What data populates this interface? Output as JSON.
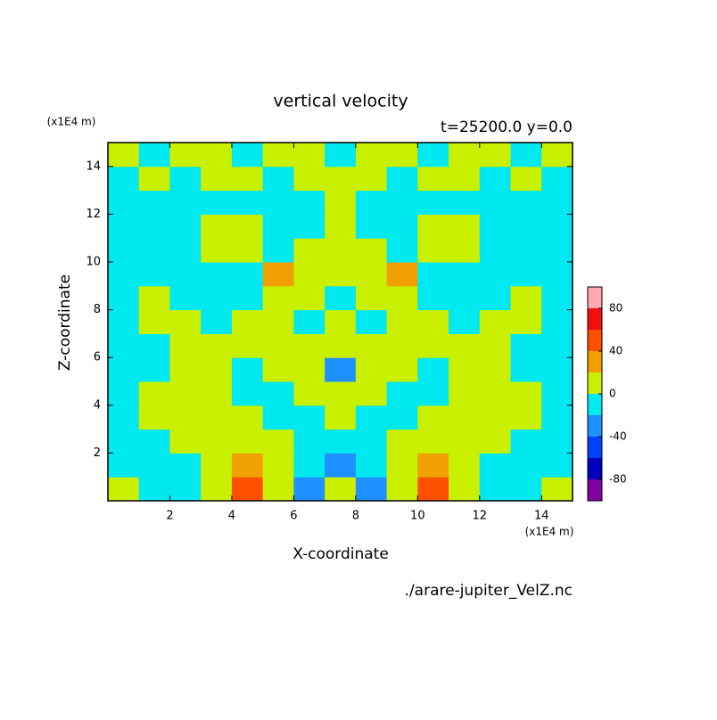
{
  "chart_data": {
    "type": "contour",
    "title": "vertical velocity",
    "subtitle": "t=25200.0 y=0.0",
    "x_label": "X-coordinate",
    "y_label": "Z-coordinate",
    "x_unit": "(x1E4 m)",
    "y_unit": "(x1E4 m)",
    "source": "./arare-jupiter_VelZ.nc",
    "xlim": [
      0,
      15
    ],
    "ylim": [
      0,
      15
    ],
    "xticks": [
      2,
      4,
      6,
      8,
      10,
      12,
      14
    ],
    "yticks": [
      2,
      4,
      6,
      8,
      10,
      12,
      14
    ],
    "x": [
      0.5,
      1.5,
      2.5,
      3.5,
      4.5,
      5.5,
      6.5,
      7.5,
      8.5,
      9.5,
      10.5,
      11.5,
      12.5,
      13.5,
      14.5
    ],
    "y": [
      0.5,
      1.5,
      2.5,
      3.5,
      4.5,
      5.5,
      6.5,
      7.5,
      8.5,
      9.5,
      10.5,
      11.5,
      12.5,
      13.5,
      14.5
    ],
    "z": [
      [
        10,
        -10,
        -10,
        10,
        50,
        10,
        -30,
        10,
        -30,
        10,
        50,
        10,
        -10,
        -10,
        10
      ],
      [
        -10,
        -10,
        -10,
        10,
        30,
        10,
        -10,
        -30,
        -10,
        10,
        30,
        10,
        -10,
        -10,
        -10
      ],
      [
        -10,
        -10,
        10,
        10,
        10,
        10,
        -10,
        -10,
        -10,
        10,
        10,
        10,
        10,
        -10,
        -10
      ],
      [
        -10,
        10,
        10,
        10,
        10,
        -10,
        -10,
        10,
        -10,
        -10,
        10,
        10,
        10,
        10,
        -10
      ],
      [
        -10,
        10,
        10,
        10,
        -10,
        -10,
        10,
        10,
        10,
        -10,
        -10,
        10,
        10,
        10,
        -10
      ],
      [
        -10,
        -10,
        10,
        10,
        -10,
        10,
        10,
        -30,
        10,
        10,
        -10,
        10,
        10,
        -10,
        -10
      ],
      [
        -10,
        -10,
        10,
        10,
        10,
        10,
        10,
        10,
        10,
        10,
        10,
        10,
        10,
        -10,
        -10
      ],
      [
        -10,
        10,
        10,
        -10,
        10,
        10,
        -10,
        10,
        -10,
        10,
        10,
        -10,
        10,
        10,
        -10
      ],
      [
        -10,
        10,
        -10,
        -10,
        -10,
        10,
        10,
        -10,
        10,
        10,
        -10,
        -10,
        -10,
        10,
        -10
      ],
      [
        -10,
        -10,
        -10,
        -10,
        -10,
        30,
        10,
        10,
        10,
        30,
        -10,
        -10,
        -10,
        -10,
        -10
      ],
      [
        -10,
        -10,
        -10,
        10,
        10,
        -10,
        10,
        10,
        10,
        -10,
        10,
        10,
        -10,
        -10,
        -10
      ],
      [
        -10,
        -10,
        -10,
        10,
        10,
        -10,
        -10,
        10,
        -10,
        -10,
        10,
        10,
        -10,
        -10,
        -10
      ],
      [
        -10,
        -10,
        -10,
        -10,
        -10,
        -10,
        -10,
        10,
        -10,
        -10,
        -10,
        -10,
        -10,
        -10,
        -10
      ],
      [
        -10,
        10,
        -10,
        10,
        10,
        -10,
        10,
        10,
        10,
        -10,
        10,
        10,
        -10,
        10,
        -10
      ],
      [
        10,
        -10,
        10,
        10,
        -10,
        10,
        10,
        -10,
        10,
        10,
        -10,
        10,
        10,
        -10,
        10
      ]
    ],
    "levels": [
      -100,
      -80,
      -60,
      -40,
      -20,
      0,
      20,
      40,
      60,
      80,
      100
    ],
    "colors": [
      "#8000a0",
      "#0000c0",
      "#0040ff",
      "#1e90ff",
      "#00e8f0",
      "#c8f000",
      "#f0a000",
      "#ff5000",
      "#f01010",
      "#ffa8b0"
    ],
    "colorbar_ticks": [
      -80,
      -40,
      0,
      40,
      80
    ]
  }
}
